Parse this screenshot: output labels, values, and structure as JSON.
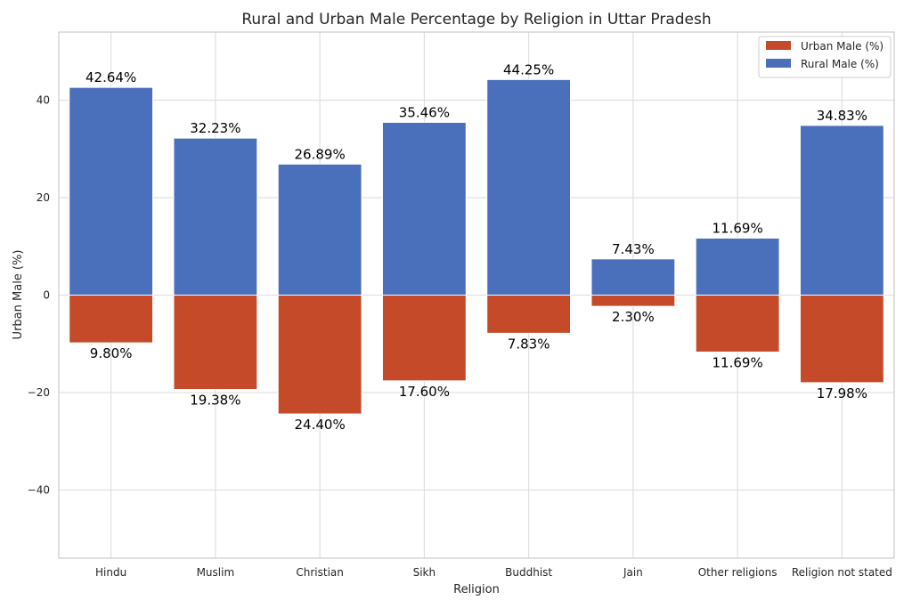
{
  "chart_data": {
    "type": "bar",
    "title": "Rural and Urban Male Percentage by Religion in Uttar Pradesh",
    "xlabel": "Religion",
    "ylabel": "Urban Male (%)",
    "categories": [
      "Hindu",
      "Muslim",
      "Christian",
      "Sikh",
      "Buddhist",
      "Jain",
      "Other religions",
      "Religion not stated"
    ],
    "series": [
      {
        "name": "Urban Male (%)",
        "values": [
          -9.8,
          -19.38,
          -24.4,
          -17.6,
          -7.83,
          -2.3,
          -11.69,
          -17.98
        ],
        "labels": [
          "9.80%",
          "19.38%",
          "24.40%",
          "17.60%",
          "7.83%",
          "2.30%",
          "11.69%",
          "17.98%"
        ],
        "color": "#c44a29"
      },
      {
        "name": "Rural Male (%)",
        "values": [
          42.64,
          32.23,
          26.89,
          35.46,
          44.25,
          7.43,
          11.69,
          34.83
        ],
        "labels": [
          "42.64%",
          "32.23%",
          "26.89%",
          "35.46%",
          "44.25%",
          "7.43%",
          "11.69%",
          "34.83%"
        ],
        "color": "#4a6fbb"
      }
    ],
    "ylim": [
      -54,
      54
    ],
    "yticks": [
      40,
      20,
      0,
      -20,
      -40
    ],
    "ytick_labels": [
      "40",
      "20",
      "0",
      "−20",
      "−40"
    ],
    "grid": true,
    "legend_position": "top-right"
  }
}
